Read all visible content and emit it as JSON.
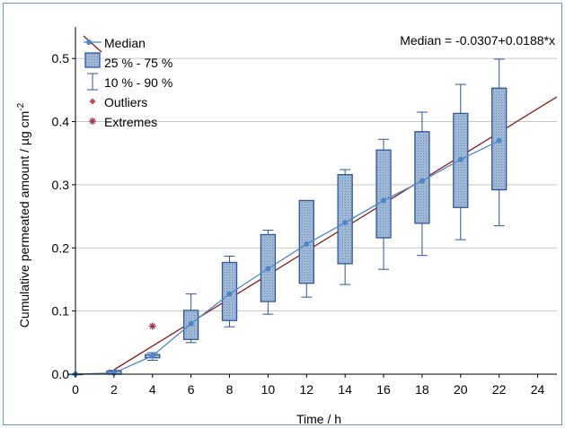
{
  "chart_data": {
    "type": "box",
    "xlabel": "Time / h",
    "ylabel": "Cumulative permeated amount / µg cm",
    "ylabel_sup": "-2",
    "equation": "Median = -0.0307+0.0188*x",
    "xlim": [
      0,
      25
    ],
    "ylim": [
      0,
      0.55
    ],
    "xticks": [
      0,
      2,
      4,
      6,
      8,
      10,
      12,
      14,
      16,
      18,
      20,
      22,
      24
    ],
    "yticks": [
      0.0,
      0.1,
      0.2,
      0.3,
      0.4,
      0.5
    ],
    "ytick_labels": [
      "0.0",
      "0.1",
      "0.2",
      "0.3",
      "0.4",
      "0.5"
    ],
    "grid": "horizontal",
    "legend": {
      "position": "top-left",
      "entries": [
        {
          "label": "Median",
          "symbol": "median"
        },
        {
          "label": "25 % - 75 %",
          "symbol": "box"
        },
        {
          "label": "10 % - 90 %",
          "symbol": "whisker"
        },
        {
          "label": "Outliers",
          "symbol": "outlier"
        },
        {
          "label": "Extremes",
          "symbol": "extreme"
        }
      ]
    },
    "boxes": [
      {
        "x": 0,
        "p10": 0.0,
        "q1": 0.0,
        "median": 0.0,
        "q3": 0.0,
        "p90": 0.0
      },
      {
        "x": 2,
        "p10": 0.0,
        "q1": 0.0,
        "median": 0.002,
        "q3": 0.005,
        "p90": 0.006
      },
      {
        "x": 4,
        "p10": 0.022,
        "q1": 0.026,
        "median": 0.029,
        "q3": 0.031,
        "p90": 0.034
      },
      {
        "x": 6,
        "p10": 0.05,
        "q1": 0.055,
        "median": 0.08,
        "q3": 0.101,
        "p90": 0.127
      },
      {
        "x": 8,
        "p10": 0.075,
        "q1": 0.085,
        "median": 0.127,
        "q3": 0.177,
        "p90": 0.187
      },
      {
        "x": 10,
        "p10": 0.095,
        "q1": 0.115,
        "median": 0.167,
        "q3": 0.221,
        "p90": 0.228
      },
      {
        "x": 12,
        "p10": 0.122,
        "q1": 0.144,
        "median": 0.206,
        "q3": 0.275,
        "p90": 0.275
      },
      {
        "x": 14,
        "p10": 0.142,
        "q1": 0.175,
        "median": 0.24,
        "q3": 0.316,
        "p90": 0.324
      },
      {
        "x": 16,
        "p10": 0.166,
        "q1": 0.216,
        "median": 0.275,
        "q3": 0.355,
        "p90": 0.372
      },
      {
        "x": 18,
        "p10": 0.188,
        "q1": 0.239,
        "median": 0.306,
        "q3": 0.384,
        "p90": 0.415
      },
      {
        "x": 20,
        "p10": 0.213,
        "q1": 0.264,
        "median": 0.34,
        "q3": 0.413,
        "p90": 0.459
      },
      {
        "x": 22,
        "p10": 0.235,
        "q1": 0.292,
        "median": 0.37,
        "q3": 0.453,
        "p90": 0.499
      }
    ],
    "outliers": [],
    "extremes": [
      {
        "x": 4,
        "y": 0.076
      }
    ],
    "fit": {
      "intercept": -0.0307,
      "slope": 0.0188,
      "x_range": [
        2,
        25
      ]
    },
    "colors": {
      "box_fill": "#9fb8d6",
      "box_stroke": "#2f5597",
      "median_line": "#4f86c6",
      "median_point": "#4f86c6",
      "fit_line": "#8b1a1a",
      "extreme": "#a03050",
      "outlier": "#c0504d",
      "grid": "#c8c8c8",
      "frame": "#6f95c7"
    }
  }
}
